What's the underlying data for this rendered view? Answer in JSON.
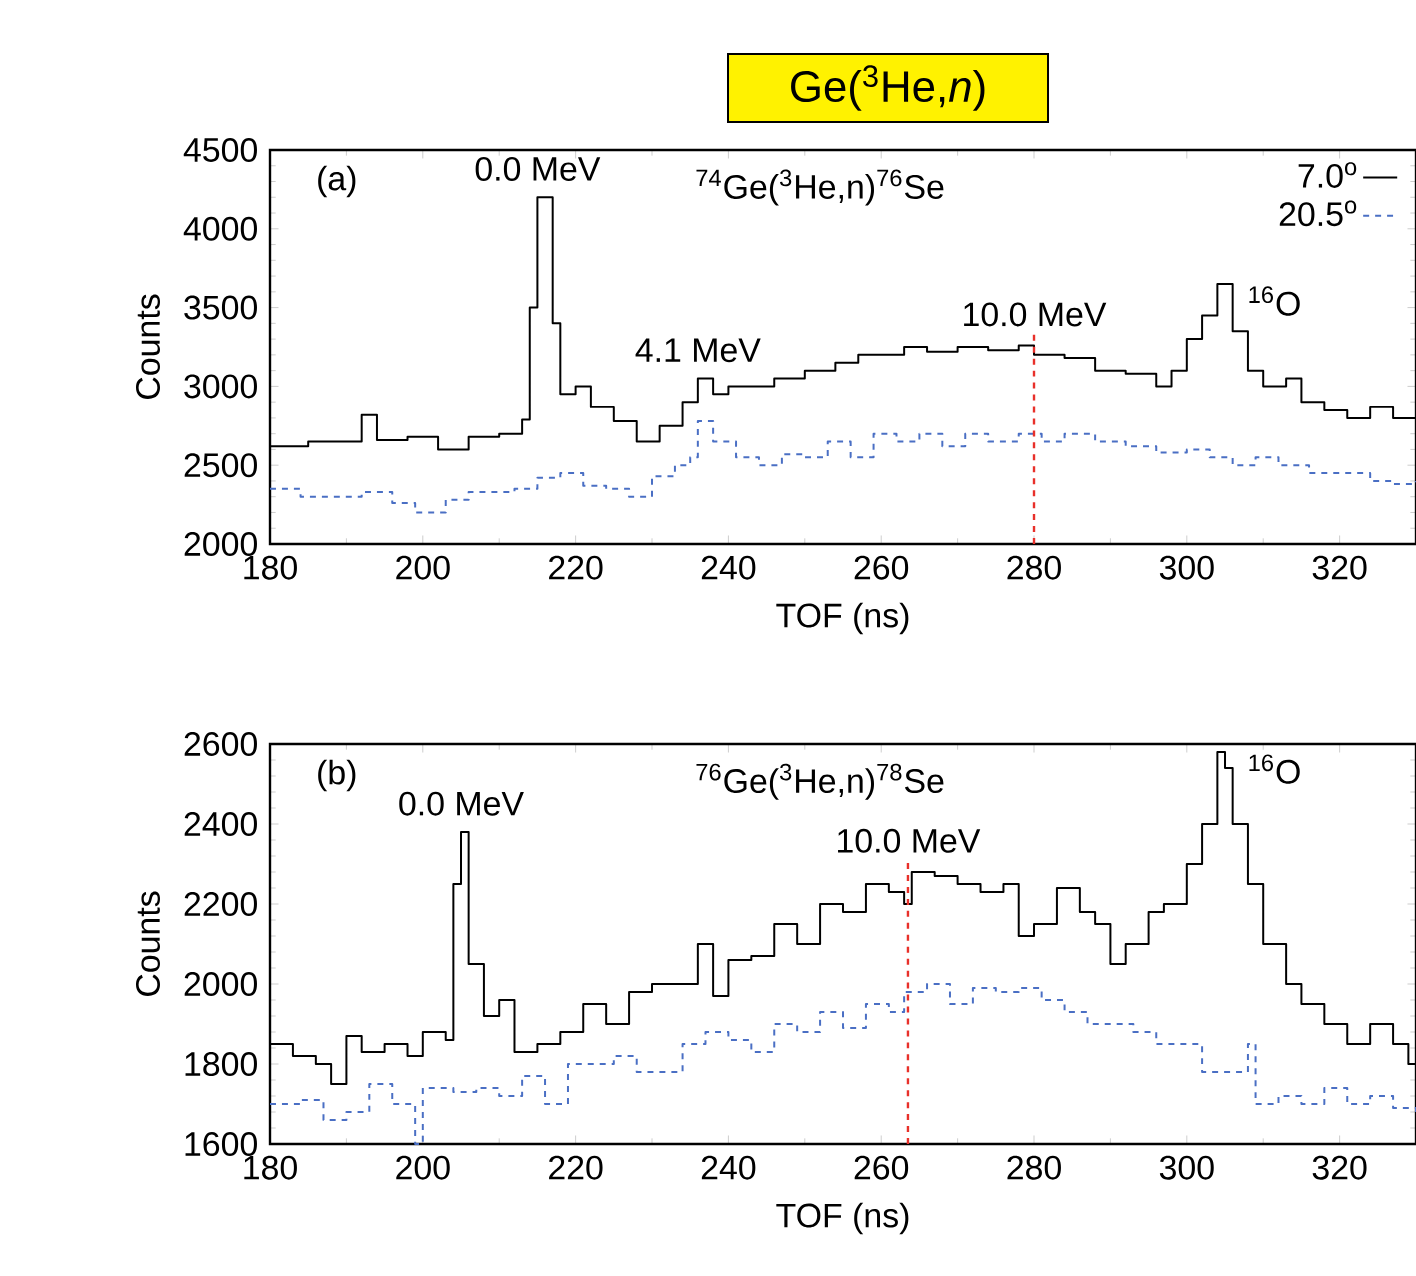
{
  "chart_data": [
    {
      "type": "step",
      "title": "Ge($^{3}$He,*n*)",
      "xlabel": "TOF (ns)",
      "ylabel": "Counts",
      "xlim": [
        180,
        330
      ],
      "ylim": [
        2000,
        4500
      ],
      "xticks": [
        180,
        200,
        220,
        240,
        260,
        280,
        300,
        320
      ],
      "yticks": [
        2000,
        2500,
        3000,
        3500,
        4000,
        4500
      ],
      "legend": "top right",
      "annotations": [
        "(a)",
        "$^{74}$Ge($^{3}$He,n)$^{76}$Se",
        {
          "text": "0.0 MeV",
          "x": 215,
          "y": 4200
        },
        {
          "text": "4.1 MeV",
          "x": 236,
          "y": 3050
        },
        {
          "text": "$^{16}$O",
          "x": 304,
          "y": 3650
        }
      ],
      "ref_lines": [
        {
          "axis": "x",
          "value": 280,
          "label": "10.0 MeV",
          "color": "#e8302a",
          "line_style": "dashed"
        }
      ],
      "series": [
        {
          "name": "7.0$^{o}$",
          "color": "#000000",
          "line_style": "solid",
          "x": [
            180,
            185,
            190,
            192,
            194,
            198,
            202,
            206,
            210,
            213,
            214,
            215,
            217,
            218,
            220,
            222,
            225,
            228,
            231,
            234,
            236,
            238,
            240,
            243,
            246,
            250,
            254,
            257,
            260,
            263,
            266,
            270,
            274,
            278,
            280,
            284,
            288,
            292,
            296,
            298,
            300,
            302,
            304,
            306,
            308,
            310,
            313,
            315,
            318,
            321,
            324,
            327,
            330
          ],
          "values": [
            2620,
            2650,
            2650,
            2820,
            2660,
            2680,
            2600,
            2680,
            2700,
            2790,
            3500,
            4200,
            3400,
            2950,
            3000,
            2870,
            2780,
            2650,
            2750,
            2900,
            3050,
            2950,
            3000,
            3000,
            3050,
            3100,
            3150,
            3200,
            3200,
            3250,
            3220,
            3250,
            3230,
            3260,
            3200,
            3180,
            3100,
            3080,
            3000,
            3100,
            3300,
            3450,
            3650,
            3350,
            3100,
            3000,
            3050,
            2900,
            2850,
            2800,
            2870,
            2800,
            2800
          ]
        },
        {
          "name": "20.5$^{o}$",
          "color": "#4a6fc4",
          "line_style": "dashed",
          "x": [
            180,
            184,
            188,
            192,
            196,
            199,
            203,
            206,
            209,
            212,
            215,
            218,
            221,
            224,
            227,
            230,
            233,
            235,
            236,
            238,
            241,
            244,
            247,
            250,
            253,
            256,
            259,
            262,
            265,
            268,
            271,
            274,
            278,
            281,
            284,
            288,
            292,
            296,
            300,
            303,
            306,
            309,
            312,
            316,
            320,
            324,
            327,
            330
          ],
          "values": [
            2350,
            2300,
            2300,
            2330,
            2260,
            2200,
            2280,
            2330,
            2330,
            2350,
            2420,
            2450,
            2370,
            2350,
            2300,
            2430,
            2500,
            2550,
            2780,
            2650,
            2550,
            2500,
            2570,
            2550,
            2650,
            2550,
            2700,
            2650,
            2700,
            2620,
            2700,
            2650,
            2700,
            2650,
            2700,
            2650,
            2620,
            2580,
            2600,
            2550,
            2500,
            2550,
            2500,
            2450,
            2450,
            2400,
            2380,
            2400
          ]
        }
      ]
    },
    {
      "type": "step",
      "xlabel": "TOF (ns)",
      "ylabel": "Counts",
      "xlim": [
        180,
        330
      ],
      "ylim": [
        1600,
        2600
      ],
      "xticks": [
        180,
        200,
        220,
        240,
        260,
        280,
        300,
        320
      ],
      "yticks": [
        1600,
        1800,
        2000,
        2200,
        2400,
        2600
      ],
      "annotations": [
        "(b)",
        "$^{76}$Ge($^{3}$He,n)$^{78}$Se",
        {
          "text": "0.0 MeV",
          "x": 205,
          "y": 2380
        },
        {
          "text": "$^{16}$O",
          "x": 304,
          "y": 2580
        }
      ],
      "ref_lines": [
        {
          "axis": "x",
          "value": 263.5,
          "label": "10.0 MeV",
          "color": "#e8302a",
          "line_style": "dashed"
        }
      ],
      "series": [
        {
          "color": "#000000",
          "line_style": "solid",
          "x": [
            180,
            183,
            186,
            188,
            190,
            192,
            195,
            198,
            200,
            203,
            204,
            205,
            206,
            208,
            210,
            212,
            215,
            218,
            221,
            224,
            227,
            230,
            233,
            236,
            238,
            240,
            243,
            246,
            249,
            252,
            255,
            258,
            261,
            263,
            264,
            267,
            270,
            273,
            276,
            278,
            280,
            283,
            286,
            288,
            290,
            292,
            295,
            297,
            300,
            302,
            304,
            305,
            306,
            308,
            310,
            313,
            315,
            318,
            321,
            324,
            327,
            329,
            330
          ],
          "values": [
            1850,
            1820,
            1800,
            1750,
            1870,
            1830,
            1850,
            1820,
            1880,
            1860,
            2250,
            2380,
            2050,
            1920,
            1960,
            1830,
            1850,
            1880,
            1950,
            1900,
            1980,
            2000,
            2000,
            2100,
            1970,
            2060,
            2070,
            2150,
            2100,
            2200,
            2180,
            2250,
            2230,
            2200,
            2280,
            2270,
            2250,
            2230,
            2250,
            2120,
            2150,
            2240,
            2180,
            2150,
            2050,
            2100,
            2180,
            2200,
            2300,
            2400,
            2580,
            2540,
            2400,
            2250,
            2100,
            2000,
            1950,
            1900,
            1850,
            1900,
            1850,
            1800,
            1850
          ]
        },
        {
          "color": "#4a6fc4",
          "line_style": "dashed",
          "x": [
            180,
            184,
            187,
            190,
            193,
            196,
            199,
            200,
            204,
            207,
            210,
            213,
            216,
            219,
            222,
            225,
            228,
            231,
            234,
            237,
            240,
            243,
            246,
            249,
            252,
            255,
            258,
            261,
            263,
            266,
            269,
            272,
            275,
            278,
            281,
            284,
            287,
            290,
            293,
            296,
            299,
            302,
            305,
            308,
            309,
            312,
            315,
            318,
            321,
            324,
            327,
            330
          ],
          "values": [
            1700,
            1710,
            1660,
            1680,
            1750,
            1700,
            1600,
            1740,
            1730,
            1740,
            1720,
            1770,
            1700,
            1800,
            1800,
            1820,
            1780,
            1780,
            1850,
            1880,
            1860,
            1830,
            1900,
            1880,
            1930,
            1890,
            1950,
            1930,
            1980,
            2000,
            1950,
            1990,
            1980,
            1990,
            1960,
            1930,
            1900,
            1900,
            1880,
            1850,
            1850,
            1780,
            1780,
            1850,
            1700,
            1720,
            1700,
            1740,
            1700,
            1720,
            1690,
            1680
          ]
        }
      ]
    }
  ]
}
